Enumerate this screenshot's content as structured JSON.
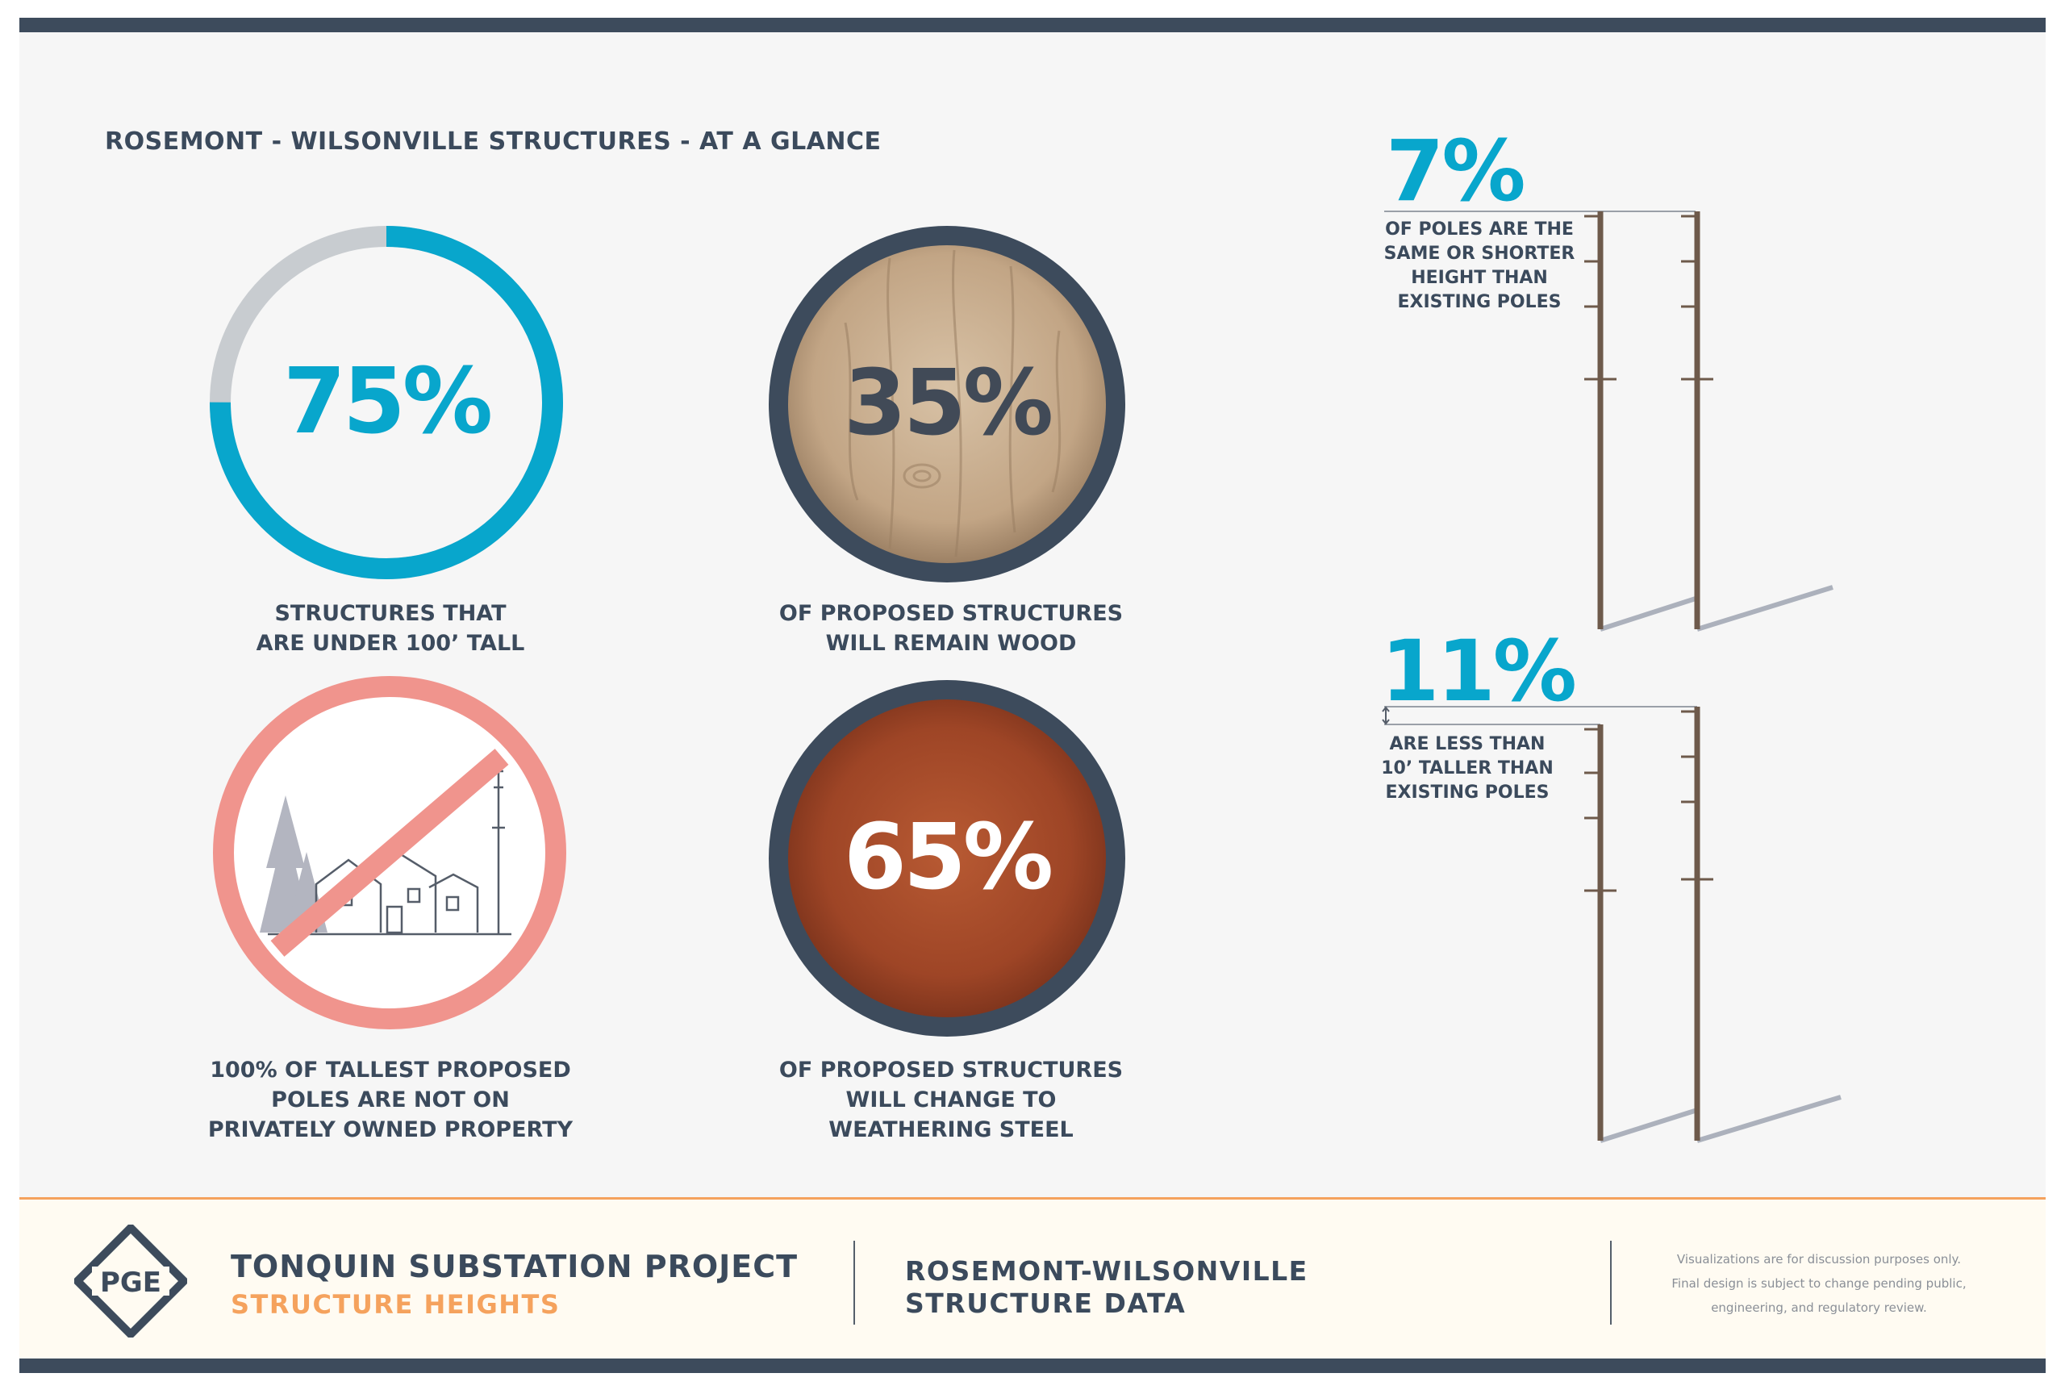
{
  "heading": "ROSEMONT - WILSONVILLE STRUCTURES - AT A GLANCE",
  "stats": {
    "under100": {
      "value": "75%",
      "fraction": 0.75,
      "caption": [
        "STRUCTURES THAT",
        "ARE UNDER 100’ TALL"
      ]
    },
    "wood": {
      "value": "35%",
      "caption": [
        "OF PROPOSED STRUCTURES",
        "WILL REMAIN WOOD"
      ]
    },
    "private": {
      "caption": [
        "100% OF TALLEST PROPOSED",
        "POLES ARE NOT ON",
        "PRIVATELY OWNED PROPERTY"
      ]
    },
    "steel": {
      "value": "65%",
      "caption": [
        "OF PROPOSED STRUCTURES",
        "WILL CHANGE TO",
        "WEATHERING STEEL"
      ]
    }
  },
  "poles": {
    "same": {
      "value": "7%",
      "caption": [
        "OF POLES ARE THE",
        "SAME OR SHORTER",
        "HEIGHT THAN",
        "EXISTING POLES"
      ]
    },
    "taller": {
      "value": "11%",
      "caption": [
        "ARE LESS THAN",
        "10’ TALLER THAN",
        "EXISTING POLES"
      ]
    }
  },
  "footer": {
    "logo": "PGE",
    "title": "TONQUIN SUBSTATION PROJECT",
    "subtitle": "STRUCTURE HEIGHTS",
    "data_title": [
      "ROSEMONT-WILSONVILLE",
      "STRUCTURE DATA"
    ],
    "note": [
      "Visualizations are for discussion purposes only.",
      "Final design is subject to change pending public,",
      "engineering, and regulatory review."
    ]
  },
  "colors": {
    "accent": "#08a6cc",
    "navy": "#3d4b5c",
    "orange": "#f5a25d",
    "salmon": "#f0948d",
    "ring_gray": "#c8ccd0"
  }
}
